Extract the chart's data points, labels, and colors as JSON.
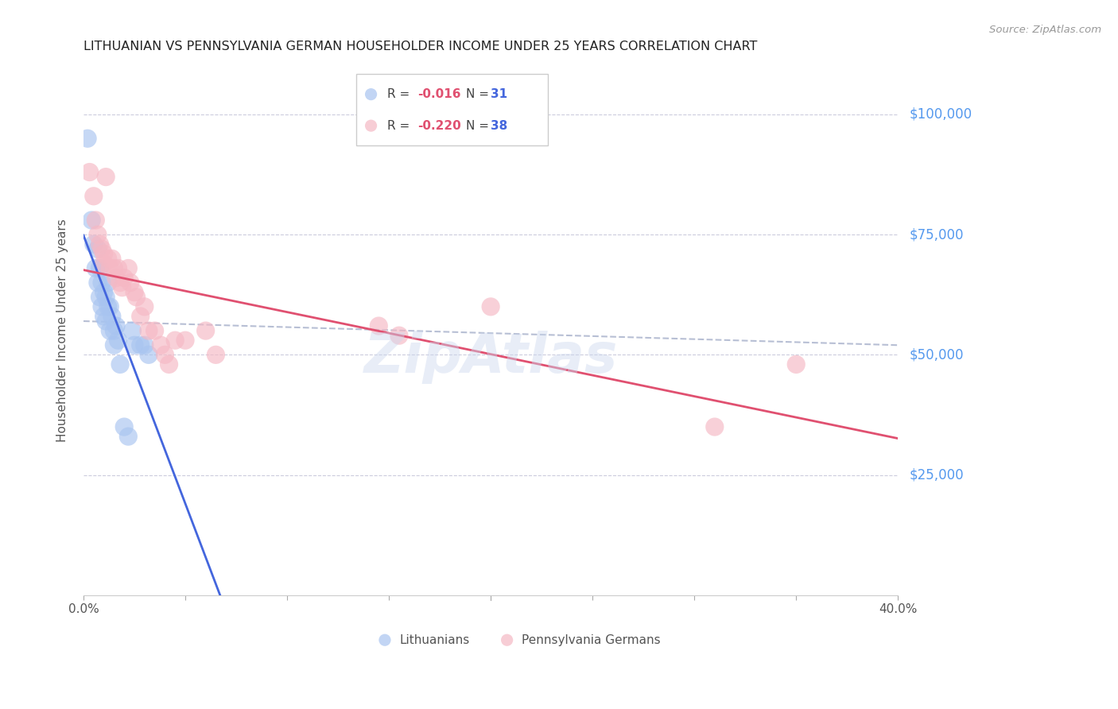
{
  "title": "LITHUANIAN VS PENNSYLVANIA GERMAN HOUSEHOLDER INCOME UNDER 25 YEARS CORRELATION CHART",
  "source": "Source: ZipAtlas.com",
  "ylabel": "Householder Income Under 25 years",
  "x_min": 0.0,
  "x_max": 0.4,
  "y_min": 0,
  "y_max": 110000,
  "yticks": [
    0,
    25000,
    50000,
    75000,
    100000
  ],
  "xticks": [
    0.0,
    0.05,
    0.1,
    0.15,
    0.2,
    0.25,
    0.3,
    0.35,
    0.4
  ],
  "xtick_labels": [
    "0.0%",
    "",
    "",
    "",
    "",
    "",
    "",
    "",
    "40.0%"
  ],
  "blue_color": "#a8c4f0",
  "pink_color": "#f5b8c4",
  "line_blue": "#4466dd",
  "line_pink": "#e05070",
  "dash_color": "#b0b8d0",
  "right_label_color": "#5599ee",
  "watermark": "ZipAtlas",
  "lithuanian_x": [
    0.002,
    0.004,
    0.005,
    0.006,
    0.007,
    0.007,
    0.008,
    0.008,
    0.009,
    0.009,
    0.01,
    0.01,
    0.011,
    0.011,
    0.012,
    0.012,
    0.013,
    0.013,
    0.014,
    0.015,
    0.015,
    0.016,
    0.017,
    0.018,
    0.02,
    0.022,
    0.024,
    0.025,
    0.028,
    0.03,
    0.032
  ],
  "lithuanian_y": [
    95000,
    78000,
    73000,
    68000,
    72000,
    65000,
    68000,
    62000,
    65000,
    60000,
    63000,
    58000,
    62000,
    57000,
    65000,
    60000,
    60000,
    55000,
    58000,
    55000,
    52000,
    56000,
    53000,
    48000,
    35000,
    33000,
    55000,
    52000,
    52000,
    52000,
    50000
  ],
  "pa_german_x": [
    0.003,
    0.005,
    0.006,
    0.007,
    0.008,
    0.009,
    0.01,
    0.01,
    0.011,
    0.012,
    0.013,
    0.014,
    0.015,
    0.016,
    0.017,
    0.018,
    0.019,
    0.02,
    0.022,
    0.023,
    0.025,
    0.026,
    0.028,
    0.03,
    0.032,
    0.035,
    0.038,
    0.04,
    0.042,
    0.045,
    0.05,
    0.06,
    0.065,
    0.145,
    0.155,
    0.2,
    0.31,
    0.35
  ],
  "pa_german_y": [
    88000,
    83000,
    78000,
    75000,
    73000,
    72000,
    71000,
    69000,
    87000,
    70000,
    68000,
    70000,
    68000,
    66000,
    68000,
    65000,
    64000,
    66000,
    68000,
    65000,
    63000,
    62000,
    58000,
    60000,
    55000,
    55000,
    52000,
    50000,
    48000,
    53000,
    53000,
    55000,
    50000,
    56000,
    54000,
    60000,
    35000,
    48000
  ]
}
